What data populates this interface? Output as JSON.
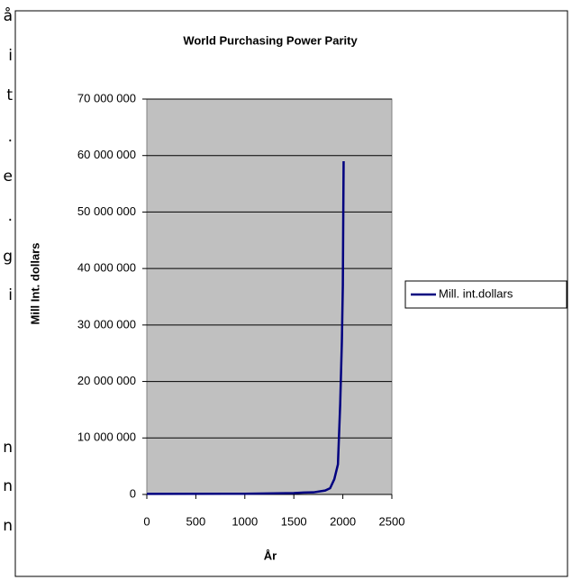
{
  "side_text": [
    "å",
    "i",
    "t",
    ".",
    "e",
    ".",
    "g",
    "i",
    "n",
    "n",
    "n"
  ],
  "chart_data": {
    "type": "line",
    "title": "World Purchasing Power Parity",
    "x_label": "År",
    "y_label": "Mill Int. dollars",
    "x": [
      1,
      1000,
      1500,
      1600,
      1700,
      1820,
      1870,
      1913,
      1950,
      1973,
      1990,
      2000,
      2008
    ],
    "series": [
      {
        "name": "Mill. int.dollars",
        "color": "#000080",
        "values": [
          105000,
          121000,
          248000,
          331000,
          371000,
          694000,
          1101000,
          2705000,
          5336000,
          16000000,
          27000000,
          37000000,
          59000000
        ]
      }
    ],
    "xlim": [
      0,
      2500
    ],
    "xticks": [
      0,
      500,
      1000,
      1500,
      2000,
      2500
    ],
    "ylim": [
      0,
      70000000
    ],
    "yticks": [
      {
        "value": 0,
        "label": "0"
      },
      {
        "value": 10000000,
        "label": "10 000 000"
      },
      {
        "value": 20000000,
        "label": "20 000 000"
      },
      {
        "value": 30000000,
        "label": "30 000 000"
      },
      {
        "value": 40000000,
        "label": "40 000 000"
      },
      {
        "value": 50000000,
        "label": "50 000 000"
      },
      {
        "value": 60000000,
        "label": "60 000 000"
      },
      {
        "value": 70000000,
        "label": "70 000 000"
      }
    ],
    "grid": true,
    "legend": "right"
  }
}
